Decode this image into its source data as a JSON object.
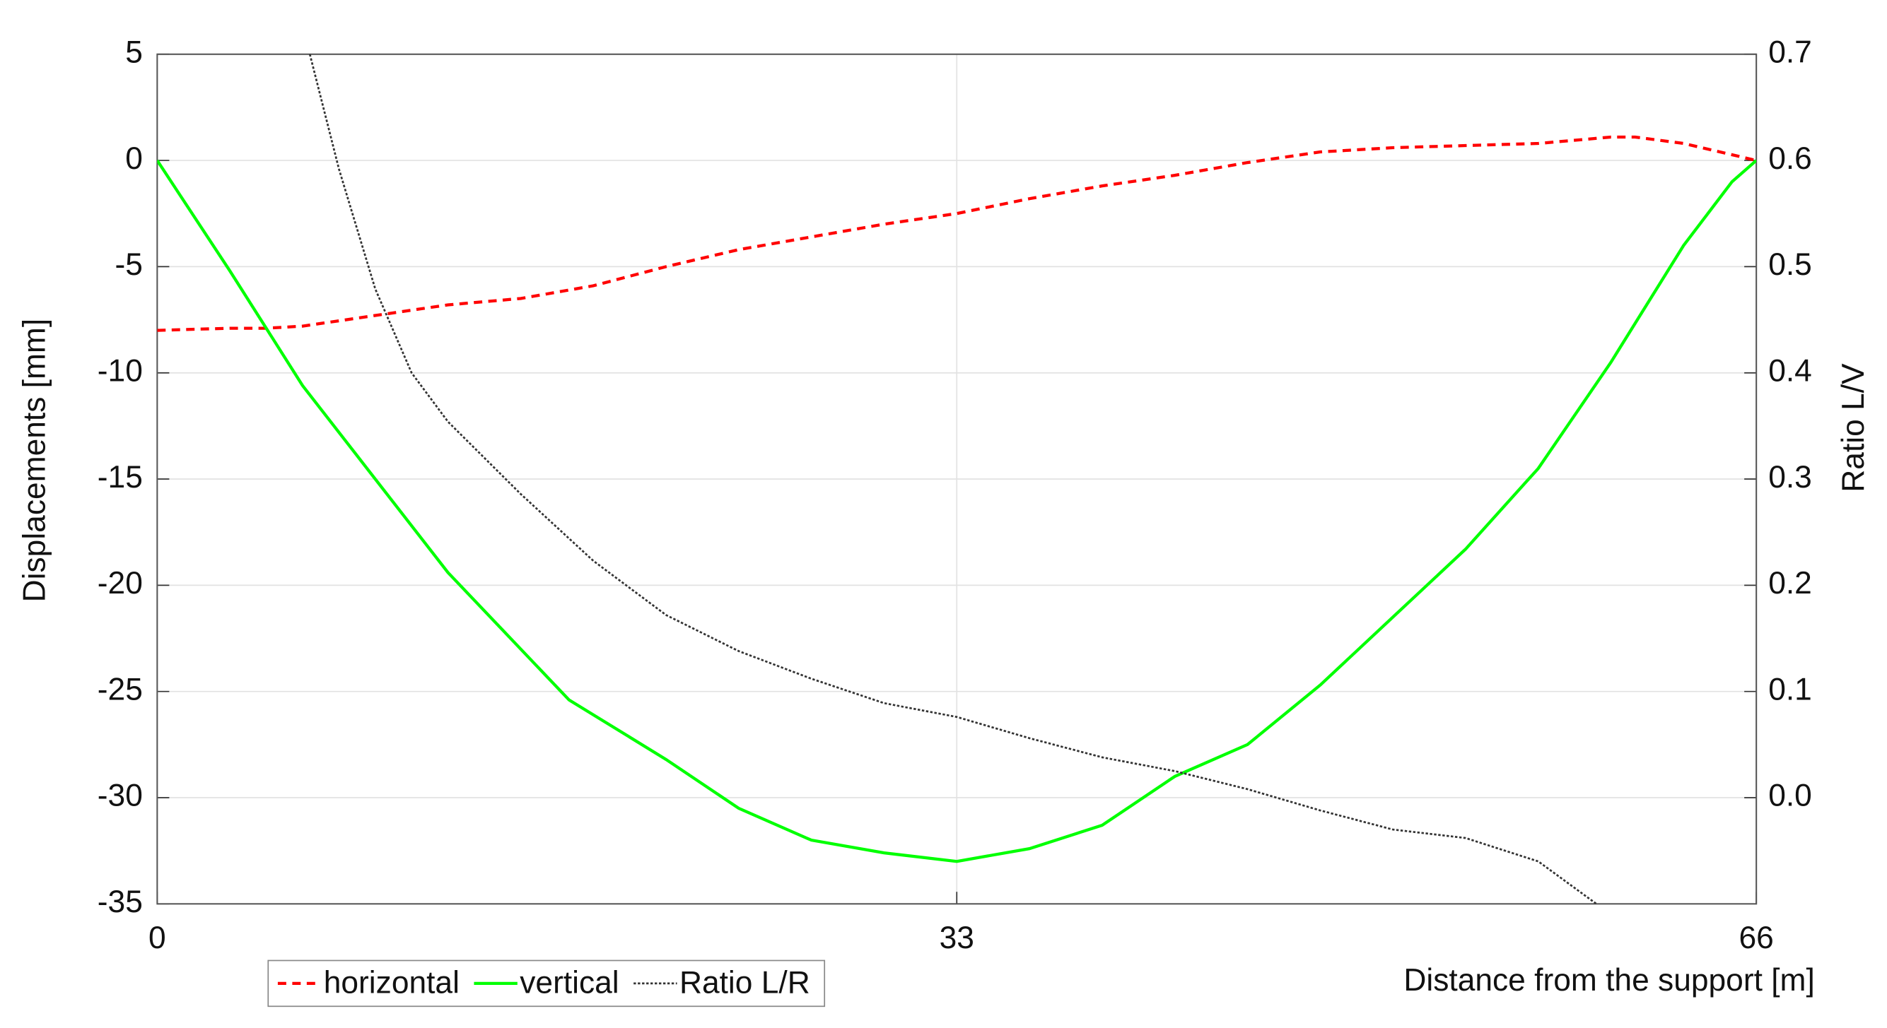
{
  "chart_data": {
    "type": "line",
    "xlabel": "Distance from the support [m]",
    "ylabel": "Displacements [mm]",
    "y2label": "Ratio L/V",
    "xlim": [
      0,
      66
    ],
    "xticks": [
      0,
      33,
      66
    ],
    "ylim": [
      -35,
      5
    ],
    "yticks": [
      -35,
      -30,
      -25,
      -20,
      -15,
      -10,
      -5,
      0,
      5
    ],
    "y2lim": [
      -0.1,
      0.7
    ],
    "y2ticks": [
      {
        "value": 0,
        "label": "0.0"
      },
      0.1,
      0.2,
      0.3,
      0.4,
      0.5,
      0.6,
      0.7
    ],
    "grid": true,
    "legend": "bottom-left",
    "series": [
      {
        "name": "horizontal",
        "color": "#ff0000",
        "style": "dashed",
        "x": [
          0,
          3,
          4.5,
          6,
          9,
          12,
          15,
          18,
          21,
          24,
          27,
          30,
          33,
          36,
          39,
          42,
          45,
          48,
          51,
          54,
          57,
          60,
          61,
          63,
          66
        ],
        "values": [
          -8,
          -7.9,
          -7.9,
          -7.8,
          -7.3,
          -6.8,
          -6.5,
          -5.9,
          -5.0,
          -4.2,
          -3.6,
          -3.0,
          -2.5,
          -1.8,
          -1.2,
          -0.7,
          -0.1,
          0.4,
          0.6,
          0.7,
          0.8,
          1.1,
          1.1,
          0.8,
          0
        ]
      },
      {
        "name": "vertical",
        "color": "#00ff00",
        "style": "solid",
        "x": [
          0,
          3,
          6,
          9,
          12,
          15,
          17,
          21,
          24,
          27,
          30,
          33,
          36,
          39,
          42,
          45,
          48,
          51,
          54,
          57,
          60,
          63,
          65,
          66
        ],
        "values": [
          0,
          -5.2,
          -10.6,
          -15,
          -19.4,
          -23,
          -25.4,
          -28.2,
          -30.5,
          -32,
          -32.6,
          -33,
          -32.4,
          -31.3,
          -29,
          -27.5,
          -24.7,
          -21.5,
          -18.3,
          -14.5,
          -9.5,
          -4,
          -1,
          0
        ]
      },
      {
        "name": "Ratio L/R",
        "color": "#333333",
        "style": "dotted",
        "axis": "y2",
        "x": [
          6.3,
          7.5,
          9,
          10.5,
          12,
          15,
          18,
          21,
          24,
          27,
          30,
          33,
          36,
          39,
          42,
          45,
          48,
          51,
          54,
          57,
          59.4
        ],
        "values": [
          0.7,
          0.592,
          0.479,
          0.4,
          0.354,
          0.286,
          0.223,
          0.172,
          0.138,
          0.112,
          0.089,
          0.076,
          0.056,
          0.038,
          0.025,
          0.008,
          -0.012,
          -0.03,
          -0.038,
          -0.06,
          -0.1
        ]
      }
    ]
  }
}
